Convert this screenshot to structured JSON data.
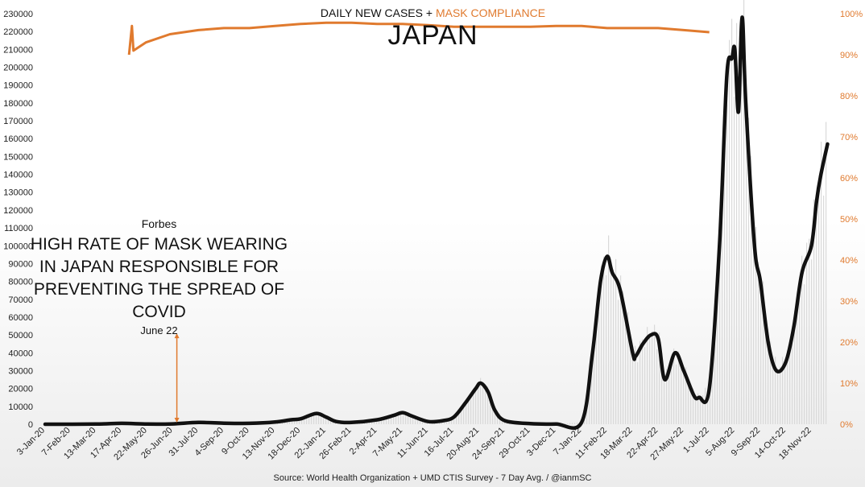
{
  "header": {
    "title_part1": "DAILY NEW CASES +",
    "title_part2": "MASK COMPLIANCE",
    "country": "JAPAN"
  },
  "annotation": {
    "publication": "Forbes",
    "headline": "HIGH RATE OF MASK WEARING IN JAPAN RESPONSIBLE FOR PREVENTING THE SPREAD OF COVID",
    "date": "June 22"
  },
  "source": "Source: World Health Organization + UMD CTIS Survey - 7 Day Avg. / @ianmSC",
  "colors": {
    "cases_line": "#111111",
    "mask_line": "#e07a2e",
    "daily_bars": "#d9d9d9",
    "annotation_arrow": "#e07a2e"
  },
  "chart_data": {
    "type": "line",
    "left_axis": {
      "range": [
        0,
        230000
      ],
      "ticks": [
        0,
        10000,
        20000,
        30000,
        40000,
        50000,
        60000,
        70000,
        80000,
        90000,
        100000,
        110000,
        120000,
        130000,
        140000,
        150000,
        160000,
        170000,
        180000,
        190000,
        200000,
        210000,
        220000,
        230000
      ]
    },
    "right_axis": {
      "range": [
        0,
        100
      ],
      "ticks": [
        "0%",
        "10%",
        "20%",
        "30%",
        "40%",
        "50%",
        "60%",
        "70%",
        "80%",
        "90%",
        "100%"
      ]
    },
    "x_labels": [
      "3-Jan-20",
      "7-Feb-20",
      "13-Mar-20",
      "17-Apr-20",
      "22-May-20",
      "26-Jun-20",
      "31-Jul-20",
      "4-Sep-20",
      "9-Oct-20",
      "13-Nov-20",
      "18-Dec-20",
      "22-Jan-21",
      "26-Feb-21",
      "2-Apr-21",
      "7-May-21",
      "11-Jun-21",
      "16-Jul-21",
      "20-Aug-21",
      "24-Sep-21",
      "29-Oct-21",
      "3-Dec-21",
      "7-Jan-22",
      "11-Feb-22",
      "18-Mar-22",
      "22-Apr-22",
      "27-May-22",
      "1-Jul-22",
      "5-Aug-22",
      "9-Sep-22",
      "14-Oct-22",
      "18-Nov-22"
    ],
    "annotation_x_label": "26-Jun-20",
    "annotation_top_value": 50000,
    "grid": false,
    "series": [
      {
        "name": "DAILY NEW CASES",
        "axis": "left",
        "points": [
          [
            "3-Jan-20",
            0
          ],
          [
            "13-Mar-20",
            100
          ],
          [
            "17-Apr-20",
            500
          ],
          [
            "22-May-20",
            100
          ],
          [
            "26-Jun-20",
            200
          ],
          [
            "31-Jul-20",
            1000
          ],
          [
            "4-Sep-20",
            600
          ],
          [
            "9-Oct-20",
            500
          ],
          [
            "13-Nov-20",
            1200
          ],
          [
            "5-Dec-20",
            2500
          ],
          [
            "18-Dec-20",
            3000
          ],
          [
            "8-Jan-21",
            6000
          ],
          [
            "22-Jan-21",
            4000
          ],
          [
            "5-Feb-21",
            1500
          ],
          [
            "26-Feb-21",
            1000
          ],
          [
            "2-Apr-21",
            2500
          ],
          [
            "25-Apr-21",
            5000
          ],
          [
            "7-May-21",
            6500
          ],
          [
            "20-May-21",
            4500
          ],
          [
            "11-Jun-21",
            1500
          ],
          [
            "1-Jul-21",
            2000
          ],
          [
            "16-Jul-21",
            4000
          ],
          [
            "1-Aug-21",
            12000
          ],
          [
            "15-Aug-21",
            20000
          ],
          [
            "22-Aug-21",
            23000
          ],
          [
            "1-Sep-21",
            18000
          ],
          [
            "10-Sep-21",
            8000
          ],
          [
            "24-Sep-21",
            2000
          ],
          [
            "29-Oct-21",
            300
          ],
          [
            "3-Dec-21",
            150
          ],
          [
            "7-Jan-22",
            1000
          ],
          [
            "22-Jan-22",
            40000
          ],
          [
            "2-Feb-22",
            80000
          ],
          [
            "11-Feb-22",
            94000
          ],
          [
            "18-Feb-22",
            85000
          ],
          [
            "1-Mar-22",
            75000
          ],
          [
            "18-Mar-22",
            40000
          ],
          [
            "22-Mar-22",
            38000
          ],
          [
            "1-Apr-22",
            45000
          ],
          [
            "12-Apr-22",
            50000
          ],
          [
            "22-Apr-22",
            48000
          ],
          [
            "1-May-22",
            25000
          ],
          [
            "15-May-22",
            40000
          ],
          [
            "27-May-22",
            30000
          ],
          [
            "10-Jun-22",
            16000
          ],
          [
            "17-Jun-22",
            15000
          ],
          [
            "1-Jul-22",
            20000
          ],
          [
            "15-Jul-22",
            100000
          ],
          [
            "25-Jul-22",
            195000
          ],
          [
            "1-Aug-22",
            205000
          ],
          [
            "5-Aug-22",
            210000
          ],
          [
            "10-Aug-22",
            175000
          ],
          [
            "15-Aug-22",
            228000
          ],
          [
            "20-Aug-22",
            180000
          ],
          [
            "1-Sep-22",
            100000
          ],
          [
            "9-Sep-22",
            80000
          ],
          [
            "20-Sep-22",
            45000
          ],
          [
            "1-Oct-22",
            30000
          ],
          [
            "14-Oct-22",
            35000
          ],
          [
            "25-Oct-22",
            55000
          ],
          [
            "5-Nov-22",
            85000
          ],
          [
            "18-Nov-22",
            100000
          ],
          [
            "25-Nov-22",
            125000
          ],
          [
            "1-Dec-22",
            140000
          ],
          [
            "10-Dec-22",
            157000
          ]
        ]
      },
      {
        "name": "MASK COMPLIANCE",
        "axis": "right",
        "points": [
          [
            "27-Apr-20",
            90
          ],
          [
            "1-May-20",
            97
          ],
          [
            "3-May-20",
            91
          ],
          [
            "20-May-20",
            93
          ],
          [
            "22-Jun-20",
            95
          ],
          [
            "31-Jul-20",
            96
          ],
          [
            "4-Sep-20",
            96.5
          ],
          [
            "9-Oct-20",
            96.5
          ],
          [
            "13-Nov-20",
            97
          ],
          [
            "18-Dec-20",
            97.5
          ],
          [
            "22-Jan-21",
            97.8
          ],
          [
            "26-Feb-21",
            97.8
          ],
          [
            "2-Apr-21",
            97.5
          ],
          [
            "7-May-21",
            97.5
          ],
          [
            "11-Jun-21",
            97.2
          ],
          [
            "16-Jul-21",
            96.8
          ],
          [
            "20-Aug-21",
            96.8
          ],
          [
            "24-Sep-21",
            96.8
          ],
          [
            "29-Oct-21",
            96.8
          ],
          [
            "3-Dec-21",
            97
          ],
          [
            "7-Jan-22",
            97
          ],
          [
            "11-Feb-22",
            96.5
          ],
          [
            "18-Mar-22",
            96.5
          ],
          [
            "22-Apr-22",
            96.5
          ],
          [
            "27-May-22",
            96
          ],
          [
            "1-Jul-22",
            95.5
          ]
        ]
      }
    ]
  }
}
